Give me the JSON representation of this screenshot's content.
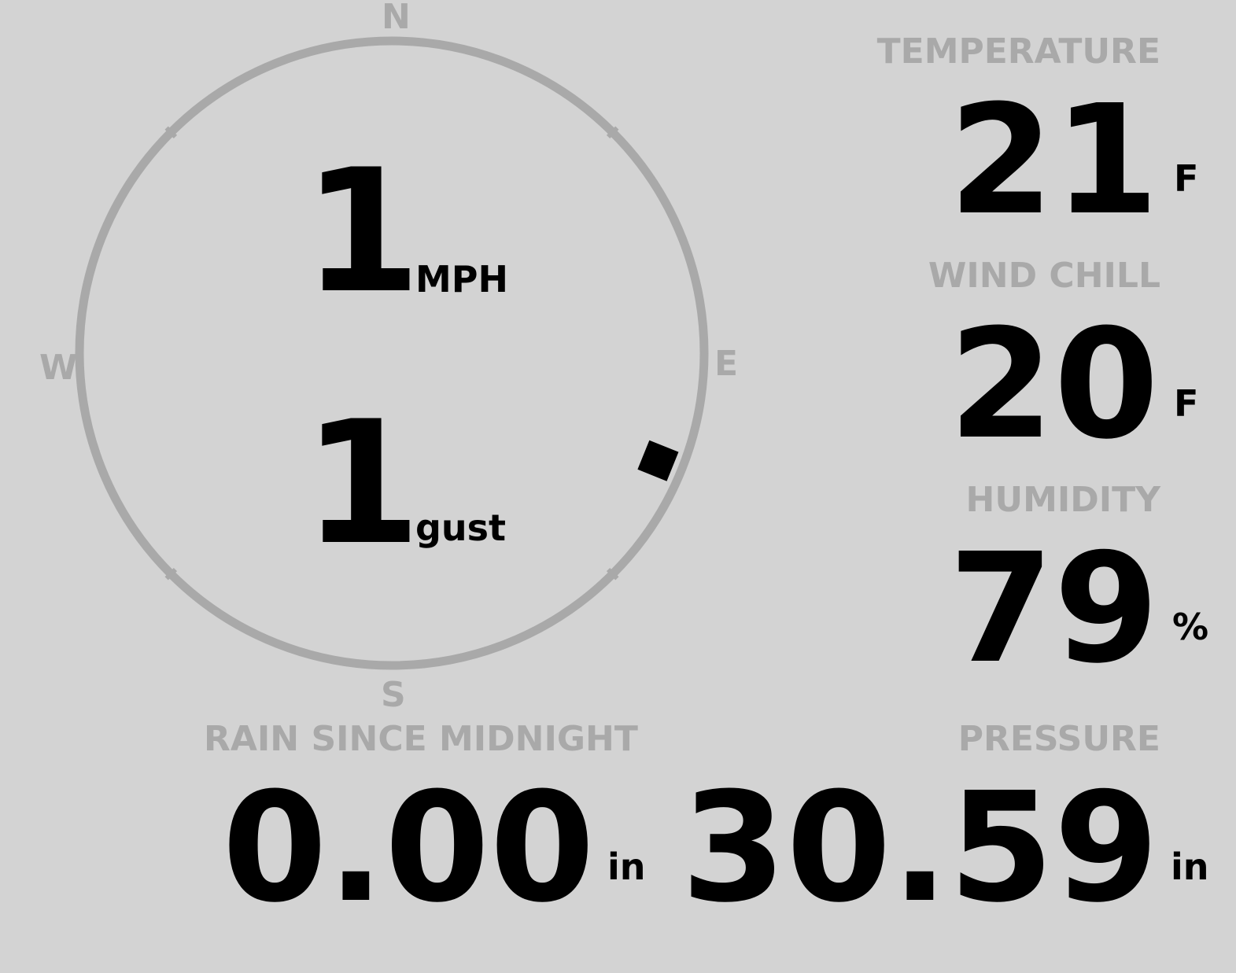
{
  "compass": {
    "north": "N",
    "east": "E",
    "south": "S",
    "west": "W",
    "wind_direction_deg": 112,
    "ring_color": "#a9a9a9"
  },
  "wind": {
    "speed": "1",
    "speed_unit": "MPH",
    "gust": "1",
    "gust_unit": "gust"
  },
  "temperature": {
    "label": "TEMPERATURE",
    "value": "21",
    "unit": "F"
  },
  "wind_chill": {
    "label": "WIND CHILL",
    "value": "20",
    "unit": "F"
  },
  "humidity": {
    "label": "HUMIDITY",
    "value": "79",
    "unit": "%"
  },
  "rain": {
    "label": "RAIN SINCE MIDNIGHT",
    "value": "0.00",
    "unit": "in"
  },
  "pressure": {
    "label": "PRESSURE",
    "value": "30.59",
    "unit": "in"
  },
  "colors": {
    "background": "#d3d3d3",
    "label": "#a9a9a9",
    "value": "#000000"
  }
}
